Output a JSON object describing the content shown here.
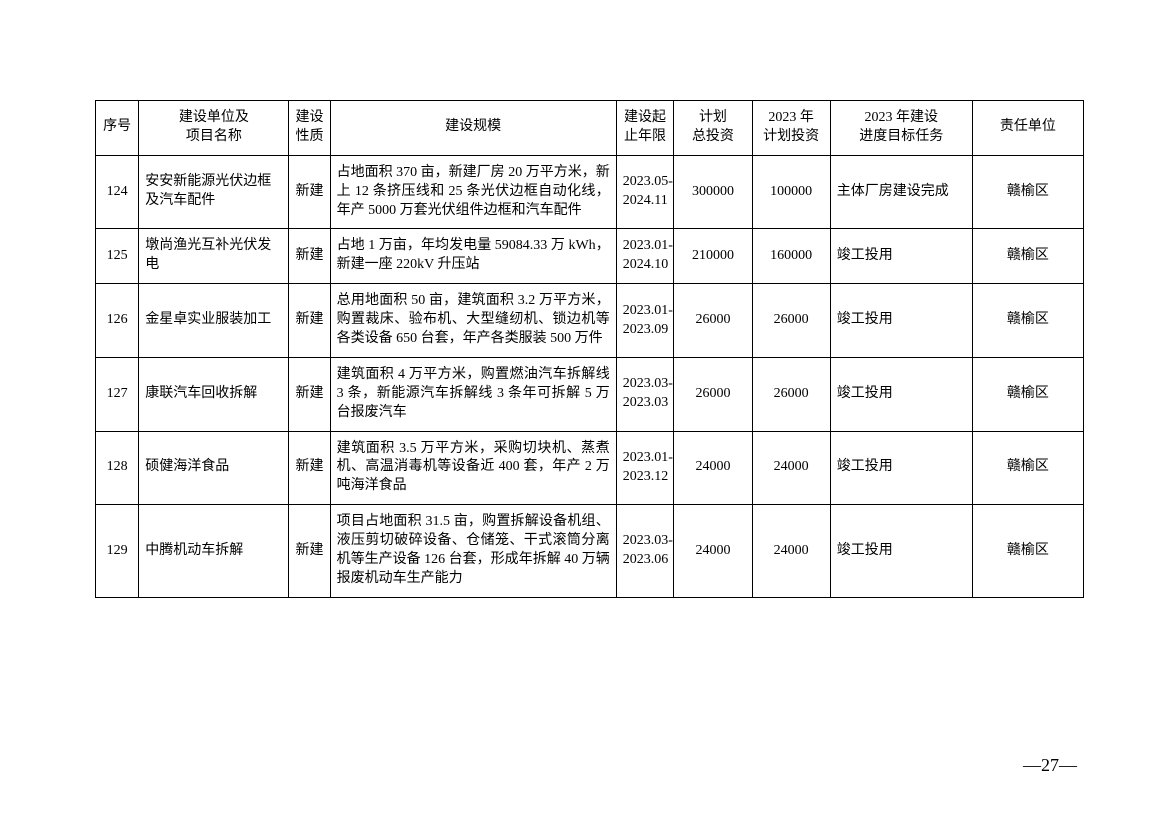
{
  "table": {
    "columns": {
      "seq": "序号",
      "name": "建设单位及\n项目名称",
      "nature": "建设\n性质",
      "scale": "建设规模",
      "period": "建设起\n止年限",
      "totalinv": "计划\n总投资",
      "planinv": "2023 年\n计划投资",
      "progress": "2023 年建设\n进度目标任务",
      "resp": "责任单位"
    },
    "rows": [
      {
        "seq": "124",
        "name": "安安新能源光伏边框及汽车配件",
        "nature": "新建",
        "scale": "占地面积 370 亩，新建厂房 20 万平方米，新上 12 条挤压线和 25 条光伏边框自动化线，年产 5000 万套光伏组件边框和汽车配件",
        "period": "2023.05-2024.11",
        "totalinv": "300000",
        "planinv": "100000",
        "progress": "主体厂房建设完成",
        "resp": "赣榆区"
      },
      {
        "seq": "125",
        "name": "墩尚渔光互补光伏发电",
        "nature": "新建",
        "scale": "占地 1 万亩，年均发电量 59084.33 万 kWh，新建一座 220kV 升压站",
        "period": "2023.01-2024.10",
        "totalinv": "210000",
        "planinv": "160000",
        "progress": "竣工投用",
        "resp": "赣榆区"
      },
      {
        "seq": "126",
        "name": "金星卓实业服装加工",
        "nature": "新建",
        "scale": "总用地面积 50 亩，建筑面积 3.2 万平方米，购置裁床、验布机、大型缝纫机、锁边机等各类设备 650 台套，年产各类服装 500 万件",
        "period": "2023.01-2023.09",
        "totalinv": "26000",
        "planinv": "26000",
        "progress": "竣工投用",
        "resp": "赣榆区"
      },
      {
        "seq": "127",
        "name": "康联汽车回收拆解",
        "nature": "新建",
        "scale": "建筑面积 4 万平方米，购置燃油汽车拆解线 3 条，新能源汽车拆解线 3 条年可拆解 5 万台报废汽车",
        "period": "2023.03-2023.03",
        "totalinv": "26000",
        "planinv": "26000",
        "progress": "竣工投用",
        "resp": "赣榆区"
      },
      {
        "seq": "128",
        "name": "硕健海洋食品",
        "nature": "新建",
        "scale": "建筑面积 3.5 万平方米，采购切块机、蒸煮机、高温消毒机等设备近 400 套，年产 2 万吨海洋食品",
        "period": "2023.01-2023.12",
        "totalinv": "24000",
        "planinv": "24000",
        "progress": "竣工投用",
        "resp": "赣榆区"
      },
      {
        "seq": "129",
        "name": "中腾机动车拆解",
        "nature": "新建",
        "scale": "项目占地面积 31.5 亩，购置拆解设备机组、液压剪切破碎设备、仓储笼、干式滚筒分离机等生产设备 126 台套，形成年拆解 40 万辆报废机动车生产能力",
        "period": "2023.03-2023.06",
        "totalinv": "24000",
        "planinv": "24000",
        "progress": "竣工投用",
        "resp": "赣榆区"
      }
    ]
  },
  "page_number": "—27—"
}
